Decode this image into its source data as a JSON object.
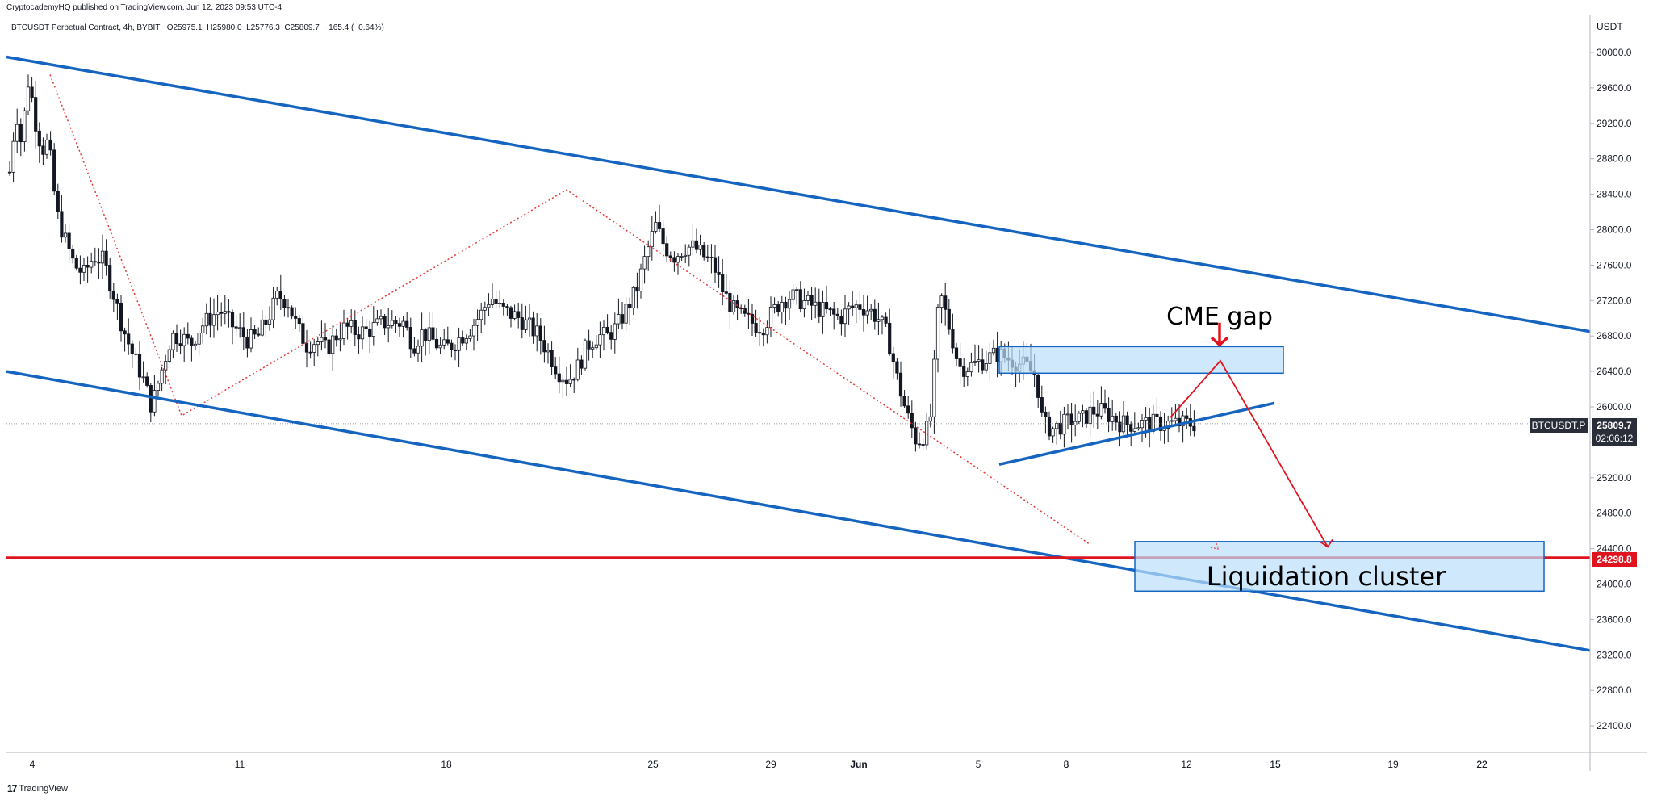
{
  "header": {
    "publisher_line": "CryptocademyHQ published on TradingView.com, Jun 12, 2023 09:53 UTC-4"
  },
  "symbol_info": {
    "title": "BTCUSDT Perpetual Contract, 4h, BYBIT",
    "open": "O25975.1",
    "high": "H25980.0",
    "low": "L25776.3",
    "close": "C25809.7",
    "change": "−165.4 (−0.64%)"
  },
  "price_scale": {
    "unit": "USDT"
  },
  "footer": {
    "logo_text": "TradingView"
  },
  "badges": {
    "symbol": "BTCUSDT.P",
    "last_price": "25809.7",
    "countdown": "02:06:12",
    "level_price": "24298.8"
  },
  "annotations": {
    "cme_gap": "CME gap",
    "liquidation_cluster": "Liquidation cluster"
  },
  "colors": {
    "channel": "#1565c0",
    "support_line": "#e0141e",
    "path_dotted": "#e53935",
    "zone_fill": "#bbdefb",
    "zone_border": "#1565c0",
    "candle": "#131722",
    "badge_dark": "#2a2e39"
  },
  "chart_data": {
    "type": "candlestick",
    "symbol": "BTCUSDT.P",
    "timeframe": "4h",
    "exchange": "BYBIT",
    "y_axis": {
      "ticks": [
        22400,
        22800,
        23200,
        23600,
        24000,
        24400,
        24800,
        25200,
        25600,
        26000,
        26400,
        26800,
        27200,
        27600,
        28000,
        28400,
        28800,
        29200,
        29600,
        30000
      ],
      "range": [
        22000,
        30400
      ]
    },
    "x_axis": {
      "ticks": [
        "4",
        "8",
        "11",
        "15",
        "18",
        "22",
        "25",
        "29",
        "Jun",
        "5",
        "8",
        "12",
        "15",
        "19",
        "22"
      ]
    },
    "last_close": 25809.7,
    "horizontal_level": 24298.8,
    "swing_path": [
      {
        "t": "May 6",
        "price": 29750
      },
      {
        "t": "May 12",
        "price": 25900
      },
      {
        "t": "May 29",
        "price": 28450
      },
      {
        "t": "Jun 10",
        "price": 24450
      }
    ],
    "channel_upper": [
      {
        "t": "May 4",
        "price": 29950
      },
      {
        "t": "Jun 26",
        "price": 26850
      }
    ],
    "channel_lower": [
      {
        "t": "May 4",
        "price": 26400
      },
      {
        "t": "Jun 26",
        "price": 23250
      }
    ],
    "ascending_support": [
      {
        "t": "Jun 6",
        "price": 25350
      },
      {
        "t": "Jun 15",
        "price": 25970
      }
    ],
    "cme_gap_zone": {
      "t_start": "Jun 7",
      "t_end": "Jun 15",
      "price_low": 26380,
      "price_high": 26680
    },
    "liquidation_zone": {
      "t_start": "Jun 10",
      "t_end": "Jun 23",
      "price_low": 23920,
      "price_high": 24480
    },
    "projection": [
      {
        "t": "Jun 12",
        "price": 25880
      },
      {
        "t": "Jun 13",
        "price": 26520
      },
      {
        "t": "Jun 16",
        "price": 24420
      }
    ]
  }
}
